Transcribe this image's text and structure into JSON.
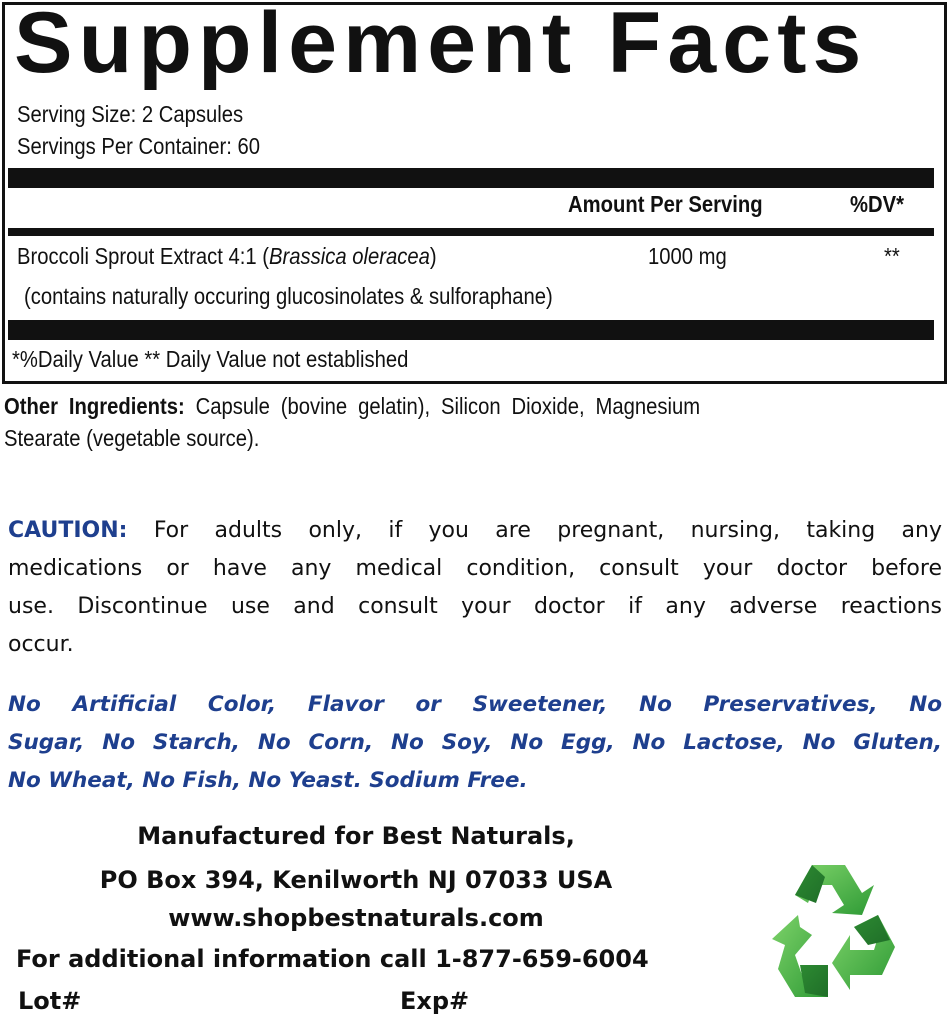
{
  "panel": {
    "title": "Supplement Facts",
    "serving_size": "Serving Size: 2 Capsules",
    "servings_per_container": "Servings Per Container: 60",
    "header_amount": "Amount Per Serving",
    "header_dv": "%DV*",
    "ingredients": [
      {
        "name": "Broccoli Sprout Extract 4:1 (",
        "latin": "Brassica oleracea",
        "close": ")",
        "amount": "1000 mg",
        "dv": "**",
        "note": "(contains naturally occuring glucosinolates & sulforaphane)"
      }
    ],
    "footnote": "*%Daily Value ** Daily Value not established"
  },
  "other_ingredients": {
    "label": "Other Ingredients:",
    "line1": "Capsule (bovine gelatin), Silicon Dioxide, Magnesium",
    "line2": "Stearate (vegetable source)."
  },
  "caution": {
    "label": "CAUTION:",
    "line1": "For adults only, if you are pregnant, nursing, taking any",
    "line2": "medications or have any medical condition, consult your doctor before",
    "line3": "use. Discontinue use and consult your doctor if any adverse reactions",
    "line4": "occur."
  },
  "free_from": {
    "line1": "No Artificial Color, Flavor or Sweetener, No Preservatives, No",
    "line2": "Sugar, No Starch, No Corn, No Soy, No Egg, No Lactose, No Gluten,",
    "line3": "No Wheat, No Fish, No Yeast. Sodium Free."
  },
  "manufacturer": {
    "line1": "Manufactured for Best Naturals,",
    "line2": "PO Box 394, Kenilworth NJ 07033 USA",
    "website": "www.shopbestnaturals.com",
    "phone_line": "For additional information call 1-877-659-6004",
    "lot_label": "Lot#",
    "exp_label": "Exp#"
  },
  "icons": {
    "recycle": "recycle-icon"
  },
  "colors": {
    "accent_blue": "#1e3f8e",
    "recycle_green": "#3fae3a"
  }
}
